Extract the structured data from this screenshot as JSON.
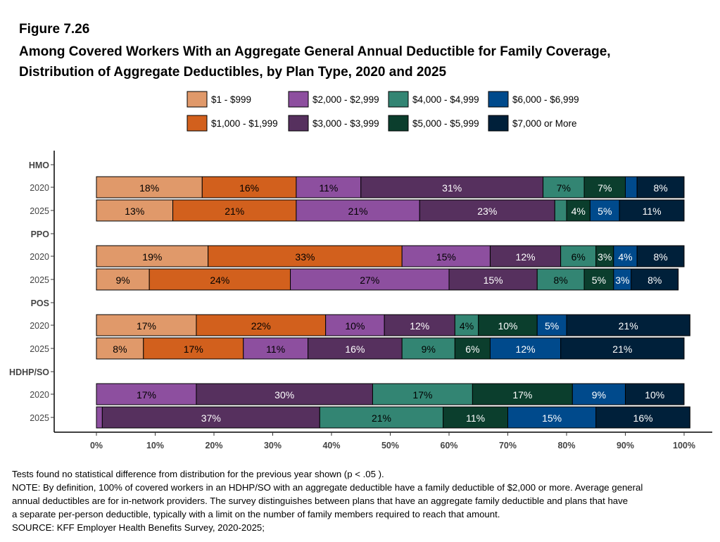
{
  "figure_label": "Figure 7.26",
  "title_line1": "Among Covered Workers With an Aggregate General Annual Deductible for Family Coverage,",
  "title_line2": "Distribution of Aggregate Deductibles, by Plan Type, 2020 and 2025",
  "notes": [
    "Tests found no statistical difference from distribution for the previous year shown (p < .05 ).",
    "NOTE: By definition, 100% of covered workers in an HDHP/SO with an aggregate deductible have a family deductible of $2,000 or more. Average general",
    "annual deductibles are for in-network providers. The survey distinguishes between plans that have an aggregate family deductible and plans that have",
    "a separate per-person deductible, typically with a limit on the number of family members required to reach that amount.",
    "SOURCE: KFF Employer Health Benefits Survey, 2020-2025;"
  ],
  "chart_data": {
    "type": "bar",
    "orientation": "horizontal",
    "stacked": true,
    "xlim": [
      0,
      100
    ],
    "x_ticks": [
      "0%",
      "10%",
      "20%",
      "30%",
      "40%",
      "50%",
      "60%",
      "70%",
      "80%",
      "90%",
      "100%"
    ],
    "legend_position": "top",
    "series": [
      {
        "name": "$1 - $999",
        "color": "#E0996A",
        "text_color": "#000"
      },
      {
        "name": "$1,000 - $1,999",
        "color": "#D2601D",
        "text_color": "#000"
      },
      {
        "name": "$2,000 - $2,999",
        "color": "#8D4F9F",
        "text_color": "#000"
      },
      {
        "name": "$3,000 - $3,999",
        "color": "#56305E",
        "text_color": "#fff"
      },
      {
        "name": "$4,000 - $4,999",
        "color": "#338573",
        "text_color": "#000"
      },
      {
        "name": "$5,000 - $5,999",
        "color": "#0B3E2D",
        "text_color": "#fff"
      },
      {
        "name": "$6,000 - $6,999",
        "color": "#004A8C",
        "text_color": "#fff"
      },
      {
        "name": "$7,000 or More",
        "color": "#00203A",
        "text_color": "#fff"
      }
    ],
    "groups": [
      {
        "name": "HMO",
        "rows": [
          {
            "year": "2020",
            "values": [
              18,
              16,
              11,
              31,
              7,
              7,
              2,
              8
            ]
          },
          {
            "year": "2025",
            "values": [
              13,
              21,
              21,
              23,
              2,
              4,
              5,
              11
            ]
          }
        ]
      },
      {
        "name": "PPO",
        "rows": [
          {
            "year": "2020",
            "values": [
              19,
              33,
              15,
              12,
              6,
              3,
              4,
              8
            ]
          },
          {
            "year": "2025",
            "values": [
              9,
              24,
              27,
              15,
              8,
              5,
              3,
              8
            ]
          }
        ]
      },
      {
        "name": "POS",
        "rows": [
          {
            "year": "2020",
            "values": [
              17,
              22,
              10,
              12,
              4,
              10,
              5,
              21
            ]
          },
          {
            "year": "2025",
            "values": [
              8,
              17,
              11,
              16,
              9,
              6,
              12,
              21
            ]
          }
        ]
      },
      {
        "name": "HDHP/SO",
        "rows": [
          {
            "year": "2020",
            "values": [
              0,
              0,
              17,
              30,
              17,
              17,
              9,
              10
            ]
          },
          {
            "year": "2025",
            "values": [
              0,
              0,
              1,
              37,
              21,
              11,
              15,
              16
            ]
          }
        ]
      }
    ]
  }
}
